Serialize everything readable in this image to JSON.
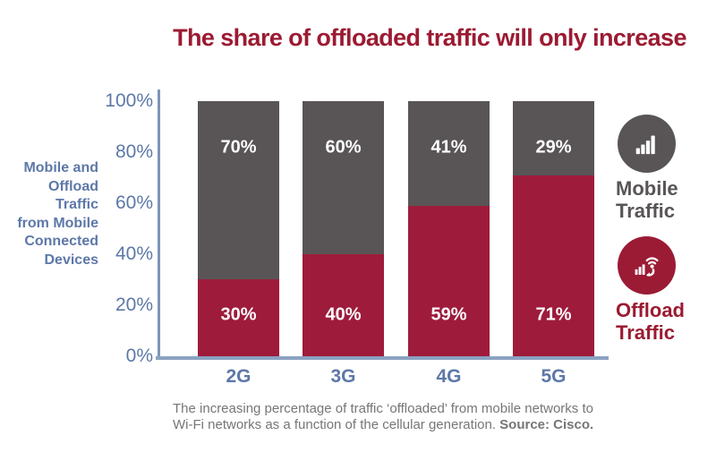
{
  "title": {
    "text": "The share of offloaded traffic will only increase"
  },
  "colors": {
    "title_red": "#9b1b32",
    "bar_red": "#9e1b3b",
    "bar_gray": "#595556",
    "axis_text_blue": "#5d78a8",
    "axis_line_blue": "#8ba2c2",
    "caption_gray": "#767676",
    "value_label_white": "#ffffff"
  },
  "chart_data": {
    "type": "bar",
    "stacked": true,
    "categories": [
      "2G",
      "3G",
      "4G",
      "5G"
    ],
    "series": [
      {
        "name": "Offload Traffic",
        "color": "#9e1b3b",
        "values": [
          30,
          40,
          59,
          71
        ],
        "labels": [
          "30%",
          "40%",
          "59%",
          "71%"
        ]
      },
      {
        "name": "Mobile Traffic",
        "color": "#595556",
        "values": [
          70,
          60,
          41,
          29
        ],
        "labels": [
          "70%",
          "60%",
          "41%",
          "29%"
        ]
      }
    ],
    "title": "The share of offloaded traffic will only increase",
    "xlabel": "",
    "ylabel": "Mobile and Offload Traffic from Mobile Connected Devices",
    "ylabel_lines": [
      "Mobile and",
      "Offload",
      "Traffic",
      "from Mobile",
      "Connected",
      "Devices"
    ],
    "ytick_labels": [
      "100%",
      "80%",
      "60%",
      "40%",
      "20%",
      "0%"
    ],
    "ylim": [
      0,
      100
    ],
    "grid": false,
    "legend_position": "right"
  },
  "legend": {
    "items": [
      {
        "id": "mobile",
        "line1": "Mobile",
        "line2": "Traffic",
        "icon": "signal-bars-icon",
        "circle_color": "#595556",
        "text_color": "#595556"
      },
      {
        "id": "offload",
        "line1": "Offload",
        "line2": "Traffic",
        "icon": "wifi-offload-icon",
        "circle_color": "#9b1b35",
        "text_color": "#9b1b32"
      }
    ]
  },
  "caption": {
    "line1": "The increasing percentage of traffic ‘offloaded’ from mobile networks to",
    "line2": "Wi-Fi networks as a function of the cellular generation. ",
    "source": "Source: Cisco."
  }
}
